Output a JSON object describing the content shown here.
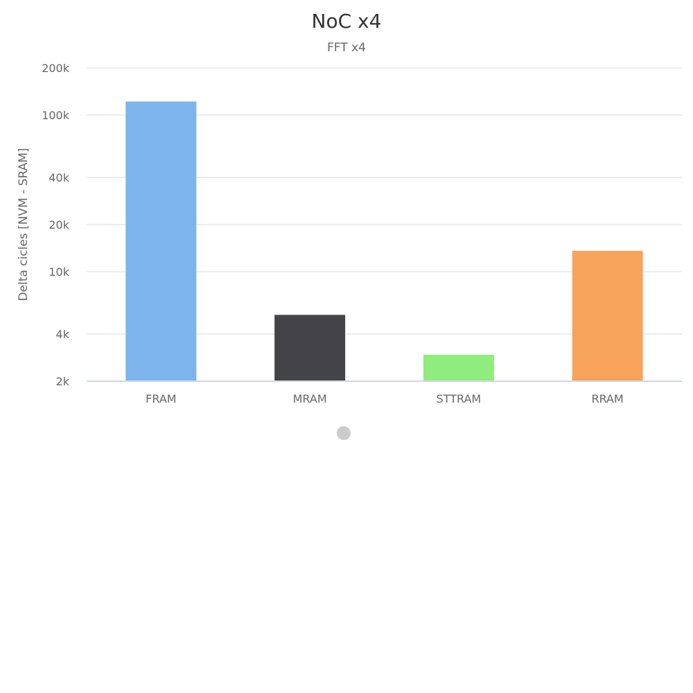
{
  "chart_data": {
    "type": "bar",
    "title": "NoC x4",
    "subtitle": "FFT x4",
    "ylabel": "Delta cicles [NVM - SRAM]",
    "xlabel": "",
    "y_scale": "log",
    "ylim": [
      2000,
      200000
    ],
    "y_ticks": [
      {
        "value": 2000,
        "label": "2k"
      },
      {
        "value": 4000,
        "label": "4k"
      },
      {
        "value": 10000,
        "label": "10k"
      },
      {
        "value": 20000,
        "label": "20k"
      },
      {
        "value": 40000,
        "label": "40k"
      },
      {
        "value": 100000,
        "label": "100k"
      },
      {
        "value": 200000,
        "label": "200k"
      }
    ],
    "grid": true,
    "categories": [
      "FRAM",
      "MRAM",
      "STTRAM",
      "RRAM"
    ],
    "values": [
      122000,
      5300,
      2950,
      13600
    ],
    "colors": [
      "#7cb5ec",
      "#434348",
      "#90ed7d",
      "#f7a35c"
    ]
  },
  "pager": {
    "dot_color": "#cccccc"
  }
}
